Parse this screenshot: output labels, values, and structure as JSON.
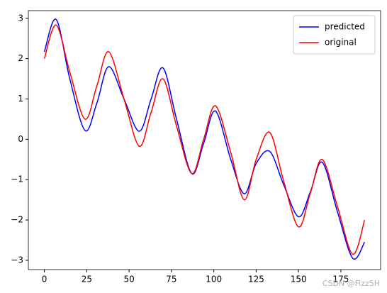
{
  "chart_data": {
    "type": "line",
    "x": [
      0,
      7,
      15,
      24,
      31,
      38,
      47,
      56,
      63,
      70,
      78,
      87,
      94,
      101,
      110,
      118,
      125,
      133,
      141,
      150,
      157,
      164,
      173,
      182,
      189
    ],
    "series": [
      {
        "name": "predicted",
        "color": "#0000ff",
        "values": [
          2.17,
          2.97,
          1.5,
          0.22,
          0.9,
          1.8,
          1.0,
          0.2,
          1.0,
          1.77,
          0.5,
          -0.85,
          -0.1,
          0.7,
          -0.5,
          -1.35,
          -0.6,
          -0.3,
          -1.1,
          -1.92,
          -1.3,
          -0.57,
          -1.8,
          -2.95,
          -2.55
        ]
      },
      {
        "name": "original",
        "color": "#ff0000",
        "values": [
          2.0,
          2.83,
          1.67,
          0.5,
          1.33,
          2.17,
          1.0,
          -0.17,
          0.67,
          1.5,
          0.33,
          -0.85,
          0.0,
          0.83,
          -0.33,
          -1.5,
          -0.5,
          0.17,
          -1.0,
          -2.17,
          -1.33,
          -0.5,
          -1.67,
          -2.85,
          -2.0
        ]
      }
    ],
    "xlim": [
      -9.45,
      198.45
    ],
    "xticks": [
      0,
      25,
      50,
      75,
      100,
      125,
      150,
      175
    ],
    "ylim": [
      -3.23,
      3.19
    ],
    "yticks": [
      {
        "value": -3,
        "label": "−3"
      },
      {
        "value": -2,
        "label": "−2"
      },
      {
        "value": -1,
        "label": "−1"
      },
      0,
      1,
      2,
      3
    ],
    "legend": "upper right",
    "watermark": "CSDN @FizzSH"
  }
}
